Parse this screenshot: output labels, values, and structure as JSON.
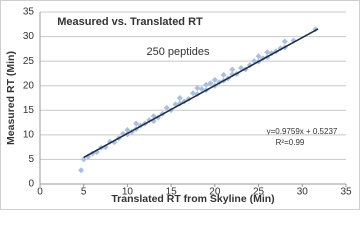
{
  "chart_data": {
    "type": "scatter",
    "title": "Measured vs. Translated RT",
    "annotation": "250 peptides",
    "x_label": "Translated RT from Skyline (Min)",
    "y_label": "Measured RT (Min)",
    "series": [
      {
        "color": "#a9c1df",
        "x": [
          4.7,
          5,
          5.5,
          6,
          6.5,
          7,
          7.5,
          8,
          8.5,
          9,
          9.5,
          10,
          10,
          10.5,
          11,
          11,
          11.5,
          12,
          12.5,
          13,
          13,
          13.5,
          14,
          14.5,
          15,
          15.5,
          16,
          16,
          16.5,
          17,
          17.5,
          18,
          18,
          18.5,
          19,
          19,
          19.5,
          20,
          20,
          20.5,
          21,
          21,
          21.5,
          22,
          22,
          22.5,
          23,
          23.5,
          24,
          24.5,
          25,
          25,
          25.5,
          26,
          26,
          26.5,
          27,
          27.5,
          28,
          28,
          29,
          31.5
        ],
        "values": [
          2.8,
          5,
          5.6,
          6.2,
          6.5,
          7.4,
          7.5,
          8.6,
          8.5,
          9.3,
          10.2,
          10.1,
          11,
          10.6,
          11.2,
          12.3,
          11.9,
          12.3,
          13,
          12.8,
          13.8,
          13.5,
          14.3,
          15.5,
          15,
          16.2,
          16.4,
          17.5,
          16.8,
          17.3,
          18.5,
          18.3,
          19.5,
          19.3,
          19.1,
          20.2,
          20.5,
          20,
          21.2,
          20.7,
          21,
          22.2,
          21.5,
          22.3,
          23.3,
          22.4,
          23.6,
          23.3,
          24.2,
          25,
          24.9,
          26,
          25.6,
          25.8,
          26.8,
          26.6,
          27,
          27.6,
          27.8,
          29,
          29.2,
          31.5
        ]
      }
    ],
    "trendline": {
      "color": "#1f2a44",
      "slope": 0.9759,
      "intercept": 0.5237,
      "x_range": [
        5,
        31.8
      ],
      "equation": "y=0.9759x + 0.5237",
      "r2": "R²=0.99"
    },
    "xlim": [
      0,
      35
    ],
    "xticks": [
      0,
      5,
      10,
      15,
      20,
      25,
      30,
      35
    ],
    "ylim": [
      0,
      35
    ],
    "yticks": [
      0,
      5,
      10,
      15,
      20,
      25,
      30,
      35
    ],
    "grid": true
  }
}
